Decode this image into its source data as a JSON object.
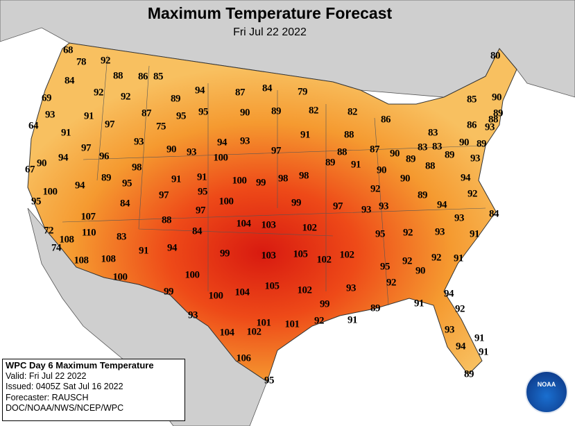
{
  "header": {
    "title": "Maximum Temperature Forecast",
    "date": "Fri Jul 22 2022"
  },
  "temperatures": [
    68,
    78,
    92,
    84,
    88,
    86,
    85,
    92,
    92,
    89,
    94,
    87,
    84,
    79,
    80,
    69,
    93,
    91,
    87,
    95,
    95,
    90,
    89,
    82,
    82,
    85,
    90,
    89,
    64,
    91,
    97,
    75,
    91,
    88,
    86,
    86,
    88,
    93,
    83,
    93,
    94,
    93,
    90,
    93,
    97,
    88,
    87,
    90,
    83,
    83,
    90,
    89,
    97,
    96,
    94,
    67,
    90,
    98,
    100,
    89,
    91,
    90,
    89,
    88,
    89,
    93,
    89,
    95,
    91,
    91,
    100,
    99,
    98,
    98,
    90,
    92,
    94,
    94,
    100,
    97,
    95,
    89,
    92,
    95,
    84,
    100,
    99,
    97,
    93,
    93,
    94,
    107,
    88,
    97,
    104,
    103,
    102,
    93,
    84,
    72,
    110,
    84,
    95,
    92,
    93,
    91,
    108,
    83,
    74,
    91,
    94,
    99,
    103,
    105,
    102,
    102,
    92,
    92,
    91,
    108,
    108,
    95,
    90,
    100,
    100,
    92,
    99,
    100,
    104,
    105,
    102,
    93,
    94,
    99,
    91,
    89,
    92,
    93,
    101,
    101,
    92,
    91,
    104,
    102,
    93,
    91,
    94,
    91,
    106,
    95,
    89
  ],
  "info_box": {
    "lines": [
      "WPC Day 6 Maximum Temperature",
      "Valid: Fri Jul 22 2022",
      "Issued: 0405Z Sat Jul 16 2022",
      "Forecaster: RAUSCH",
      "DOC/NOAA/NWS/NCEP/WPC"
    ]
  },
  "logo": "NOAA"
}
